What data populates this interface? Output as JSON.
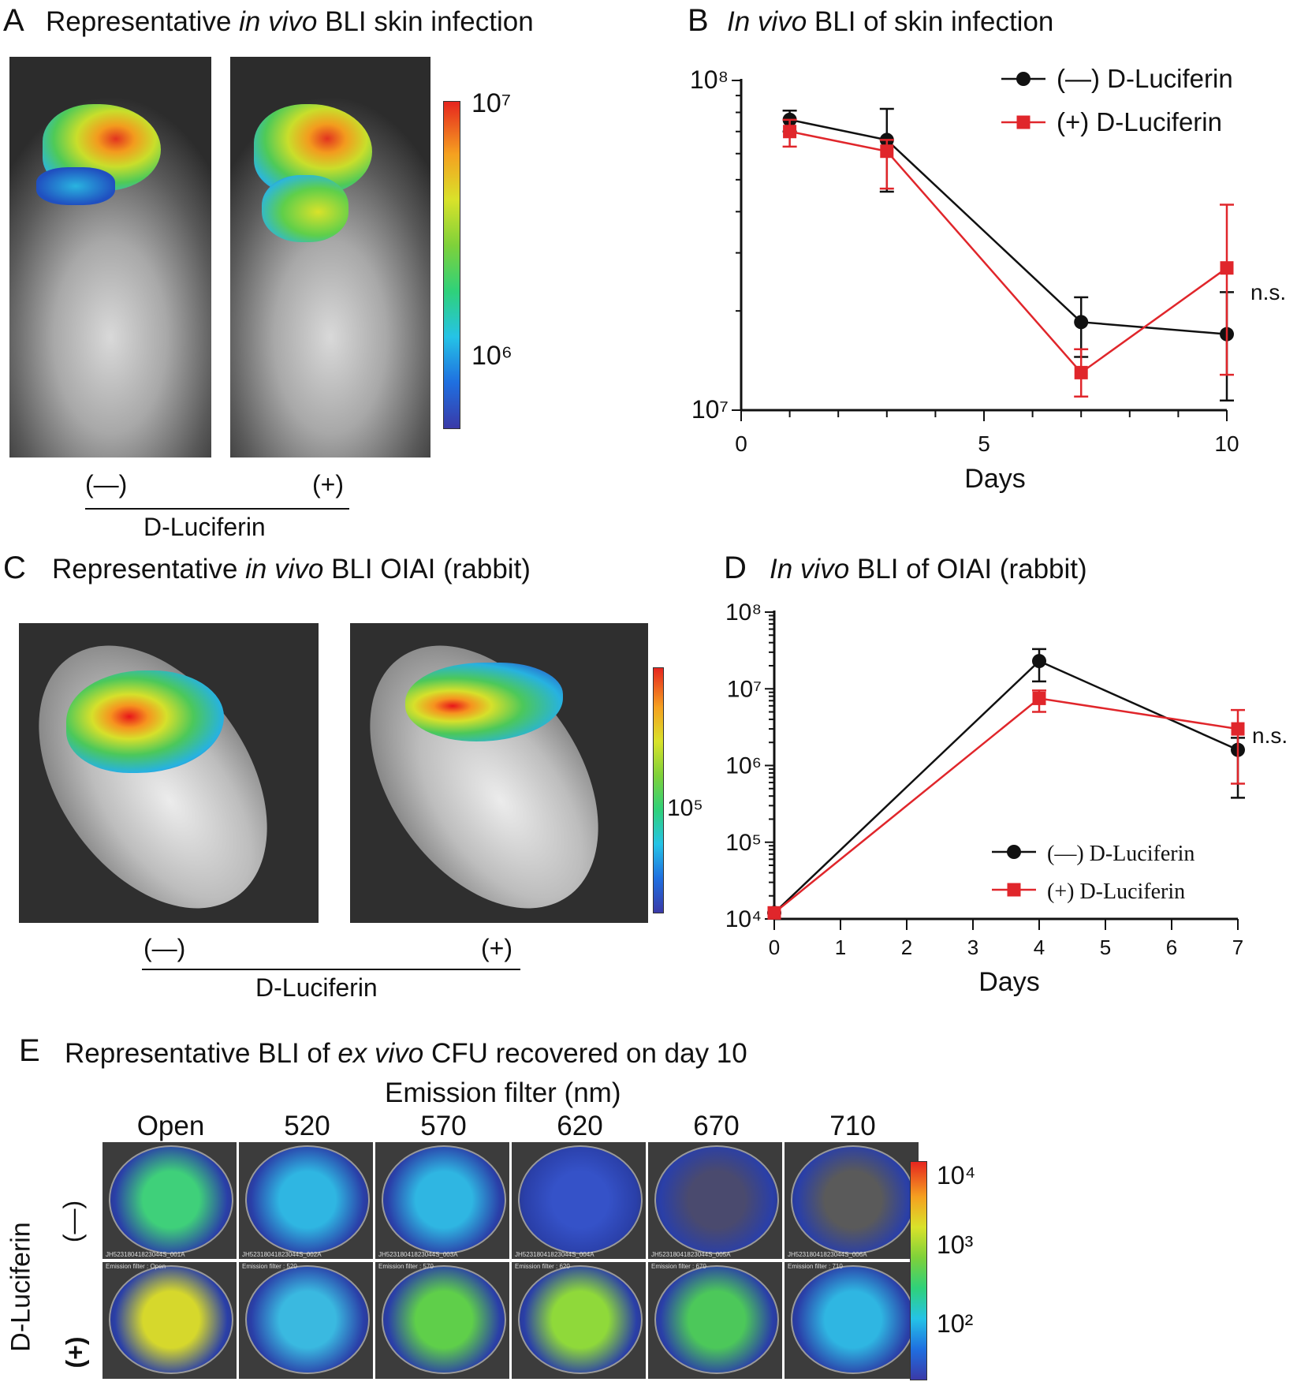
{
  "panelA": {
    "letter": "A",
    "title_pre": "Representative ",
    "title_it": "in vivo",
    "title_post": " BLI skin infection",
    "colorbar_ticks": [
      "10⁷",
      "10⁶"
    ],
    "group_labels": [
      "(—)",
      "(+)"
    ],
    "group_title": "D-Luciferin"
  },
  "panelC": {
    "letter": "C",
    "title_pre": "Representative ",
    "title_it": "in vivo",
    "title_post": " BLI OIAI (rabbit)",
    "colorbar_ticks": [
      "10⁵"
    ],
    "group_labels": [
      "(—)",
      "(+)"
    ],
    "group_title": "D-Luciferin"
  },
  "panelE": {
    "letter": "E",
    "title_pre": "Representative BLI of ",
    "title_it": "ex vivo",
    "title_post": " CFU recovered on day 10",
    "filter_title": "Emission filter (nm)",
    "filters": [
      "Open",
      "520",
      "570",
      "620",
      "670",
      "710"
    ],
    "row_group": "D-Luciferin",
    "row_labels": [
      "(—)",
      "(+)"
    ],
    "colorbar_ticks": [
      "10⁴",
      "10³",
      "10²"
    ],
    "plate_ids": [
      "JH52318041823044S_001A",
      "JH52318041823044S_002A",
      "JH52318041823044S_003A",
      "JH52318041823044S_004A",
      "JH52318041823044S_005A",
      "JH52318041823044S_006A"
    ],
    "plate_filters": [
      "Emission filter : Open",
      "Emission filter : 520",
      "Emission filter : 570",
      "Emission filter : 620",
      "Emission filter : 670",
      "Emission filter : 710"
    ]
  },
  "chart_data": [
    {
      "panel": "B",
      "type": "line",
      "title_it": "In vivo",
      "title_post": " BLI of skin infection",
      "xlabel": "Days",
      "ylabel": "",
      "yscale": "log",
      "xlim": [
        0,
        10
      ],
      "ylim": [
        10000000,
        100000000
      ],
      "xticks": [
        0,
        5,
        10
      ],
      "xtick_labels": [
        "0",
        "5",
        "10"
      ],
      "yticks": [
        10000000,
        100000000
      ],
      "ytick_labels": [
        "10⁷",
        "10⁸"
      ],
      "annotation": "n.s.",
      "series": [
        {
          "name": "(—) D-Luciferin",
          "color": "#111111",
          "marker": "circle",
          "x": [
            1,
            3,
            7,
            10
          ],
          "y": [
            76000000,
            66000000,
            18500000,
            17000000
          ],
          "err_low": [
            70000000,
            46000000,
            14500000,
            10700000
          ],
          "err_high": [
            81000000,
            82000000,
            22000000,
            22800000
          ]
        },
        {
          "name": "(+) D-Luciferin",
          "color": "#e0262b",
          "marker": "square",
          "x": [
            1,
            3,
            7,
            10
          ],
          "y": [
            70000000,
            61000000,
            13000000,
            27000000
          ],
          "err_low": [
            63000000,
            47000000,
            11000000,
            12800000
          ],
          "err_high": [
            76000000,
            66000000,
            15300000,
            42000000
          ]
        }
      ]
    },
    {
      "panel": "D",
      "type": "line",
      "title_it": "In vivo",
      "title_post": " BLI of OIAI (rabbit)",
      "xlabel": "Days",
      "ylabel": "",
      "yscale": "log",
      "xlim": [
        0,
        7
      ],
      "ylim": [
        10000,
        100000000
      ],
      "xticks": [
        0,
        1,
        2,
        3,
        4,
        5,
        6,
        7
      ],
      "xtick_labels": [
        "0",
        "1",
        "2",
        "3",
        "4",
        "5",
        "6",
        "7"
      ],
      "yticks": [
        10000,
        100000,
        1000000,
        10000000,
        100000000
      ],
      "ytick_labels": [
        "10⁴",
        "10⁵",
        "10⁶",
        "10⁷",
        "10⁸"
      ],
      "annotation": "n.s.",
      "series": [
        {
          "name": "(—) D-Luciferin",
          "color": "#111111",
          "marker": "circle",
          "x": [
            0,
            4,
            7
          ],
          "y": [
            12000,
            23000000,
            1600000
          ],
          "err_low": [
            12000,
            12500000,
            380000
          ],
          "err_high": [
            12000,
            33000000,
            2300000
          ]
        },
        {
          "name": "(+) D-Luciferin",
          "color": "#e0262b",
          "marker": "square",
          "x": [
            0,
            4,
            7
          ],
          "y": [
            12000,
            7500000,
            3000000
          ],
          "err_low": [
            12000,
            5000000,
            580000
          ],
          "err_high": [
            12000,
            9500000,
            5300000
          ]
        }
      ]
    }
  ]
}
